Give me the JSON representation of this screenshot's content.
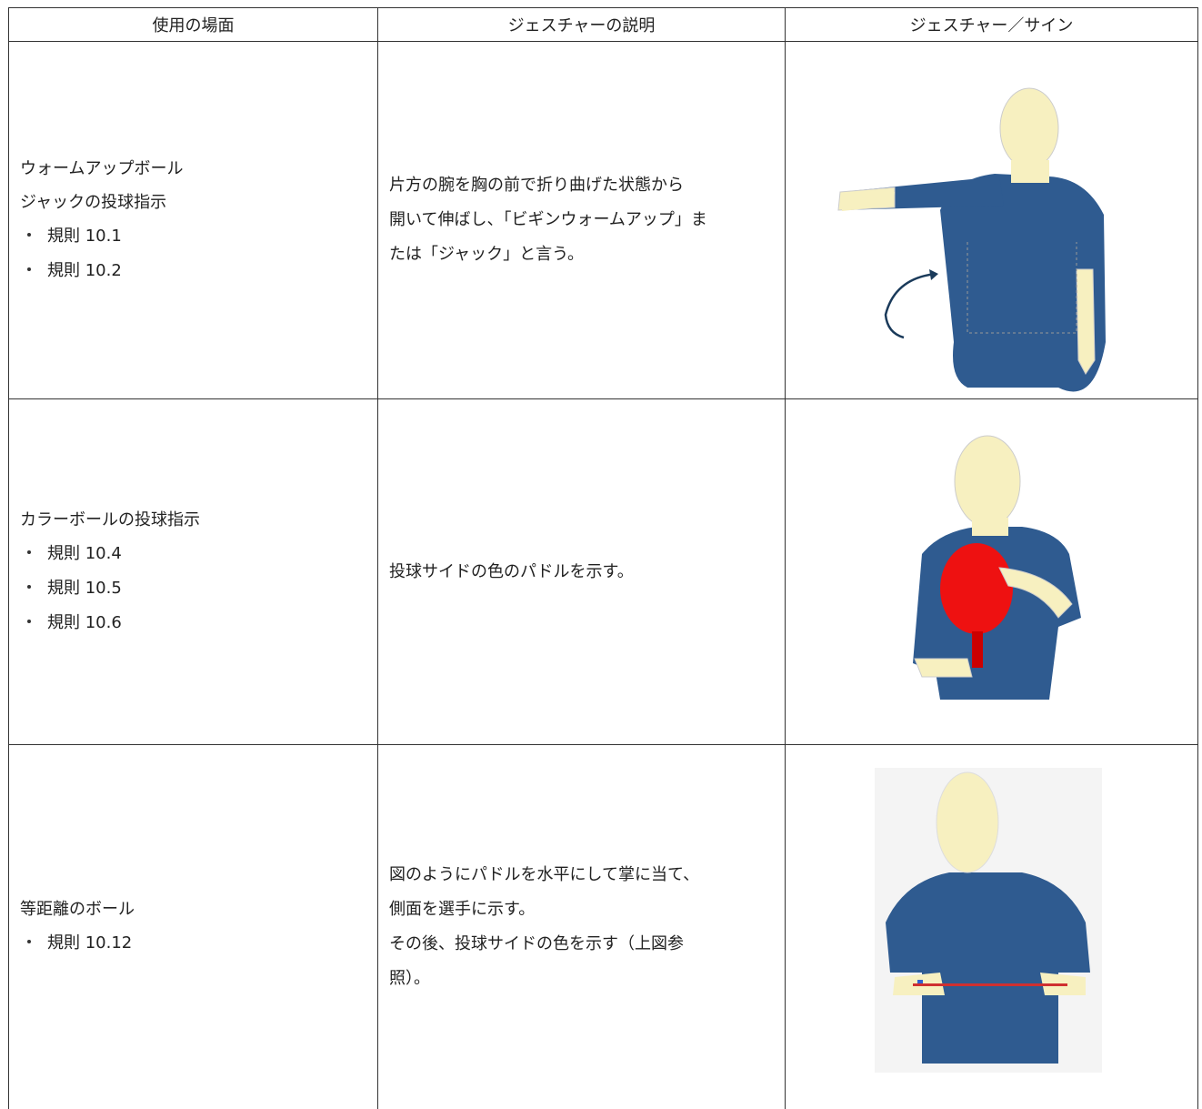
{
  "table": {
    "columns": [
      "使用の場面",
      "ジェスチャーの説明",
      "ジェスチャー／サイン"
    ],
    "rows": [
      {
        "scene": [
          "ウォームアップボール",
          "ジャックの投球指示"
        ],
        "rules": [
          "規則 10.1",
          "規則 10.2"
        ],
        "description": [
          "片方の腕を胸の前で折り曲げた状態から",
          "開いて伸ばし、「ビギンウォームアップ」ま",
          "たは「ジャック」と言う。"
        ]
      },
      {
        "scene": [
          "カラーボールの投球指示"
        ],
        "rules": [
          "規則 10.4",
          "規則 10.5",
          "規則 10.6"
        ],
        "description": [
          "投球サイドの色のパドルを示す。"
        ]
      },
      {
        "scene": [
          "等距離のボール"
        ],
        "rules": [
          "規則 10.12"
        ],
        "description": [
          "図のようにパドルを水平にして掌に当て、",
          "側面を選手に示す。",
          "その後、投球サイドの色を示す（上図参",
          "照）。"
        ]
      }
    ]
  }
}
